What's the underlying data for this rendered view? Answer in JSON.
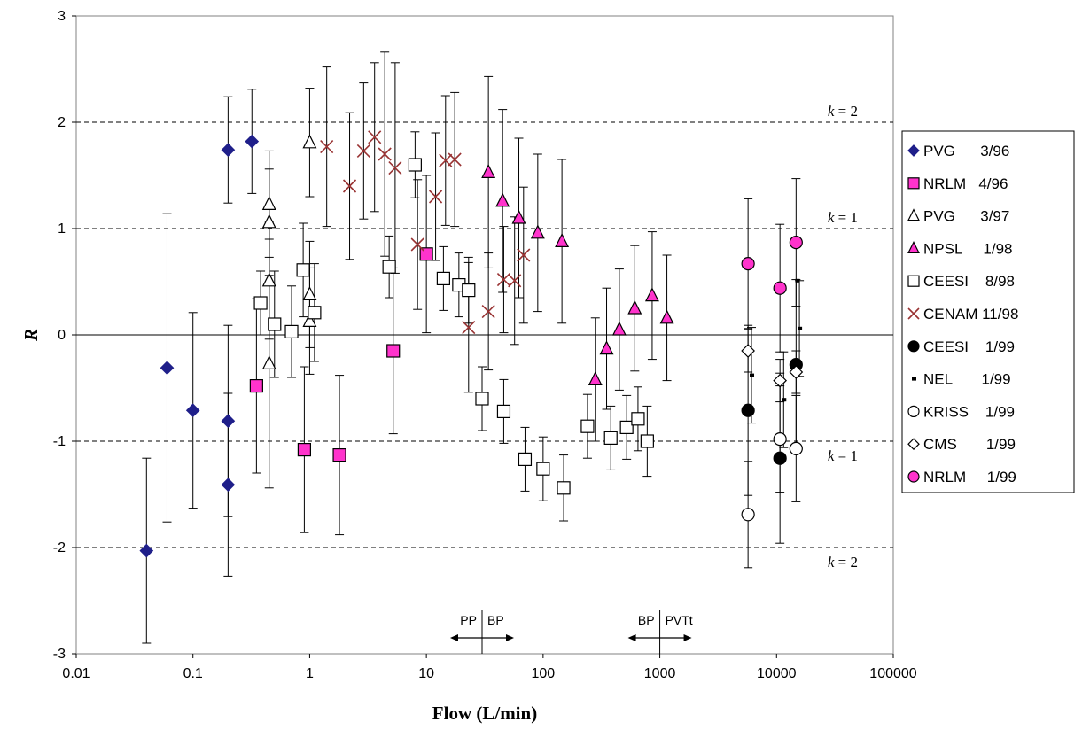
{
  "chart_data": {
    "type": "scatter",
    "title": "",
    "xlabel": "Flow (L/min)",
    "ylabel": "R",
    "xscale": "log",
    "xlim": [
      0.01,
      100000
    ],
    "ylim": [
      -3,
      3
    ],
    "x_tick_labels": [
      "0.01",
      "0.1",
      "1",
      "10",
      "100",
      "1000",
      "10000",
      "100000"
    ],
    "y_tick_labels": [
      "-3",
      "-2",
      "-1",
      "0",
      "1",
      "2",
      "3"
    ],
    "grid": "dashed lines at ±1 and ±2",
    "legend_position": "right",
    "reference_lines": [
      {
        "y": 2,
        "label_prefix": "k",
        "label_suffix": " = 2"
      },
      {
        "y": 1,
        "label_prefix": "k",
        "label_suffix": " = 1"
      },
      {
        "y": -1,
        "label_prefix": "k",
        "label_suffix": " = 1"
      },
      {
        "y": -2,
        "label_prefix": "k",
        "label_suffix": " = 2"
      }
    ],
    "annotations": [
      {
        "x": 30,
        "left": "PP",
        "right": "BP"
      },
      {
        "x": 1000,
        "left": "BP",
        "right": "PVTt"
      }
    ],
    "series": [
      {
        "name": "PVG      3/96",
        "marker": "diamond",
        "fill": "#1f1f8a",
        "stroke": "#1f1f8a",
        "points": [
          [
            0.04,
            -2.03,
            0.87
          ],
          [
            0.06,
            -0.31,
            1.45
          ],
          [
            0.1,
            -0.71,
            0.92
          ],
          [
            0.2,
            1.74,
            0.5
          ],
          [
            0.2,
            -0.81,
            0.9
          ],
          [
            0.2,
            -1.41,
            0.86
          ],
          [
            0.32,
            1.82,
            0.49
          ]
        ]
      },
      {
        "name": "NRLM   4/96",
        "marker": "square",
        "fill": "#ff33cc",
        "stroke": "#000000",
        "points": [
          [
            0.35,
            -0.48,
            0.82
          ],
          [
            0.9,
            -1.08,
            0.78
          ],
          [
            1.8,
            -1.13,
            0.75
          ],
          [
            5.2,
            -0.15,
            0.78
          ],
          [
            10,
            0.76,
            0.74
          ]
        ]
      },
      {
        "name": "PVG      3/97",
        "marker": "triangle",
        "fill": "#ffffff",
        "stroke": "#000000",
        "points": [
          [
            0.45,
            1.23,
            0.5
          ],
          [
            0.45,
            1.06,
            0.5
          ],
          [
            0.45,
            0.51,
            0.55
          ],
          [
            0.45,
            -0.27,
            1.17
          ],
          [
            1.0,
            1.81,
            0.51
          ],
          [
            1.0,
            0.38,
            0.5
          ],
          [
            1.0,
            0.13,
            0.5
          ]
        ]
      },
      {
        "name": "NPSL     1/98",
        "marker": "triangle",
        "fill": "#ff33cc",
        "stroke": "#000000",
        "points": [
          [
            34,
            1.53,
            0.9
          ],
          [
            45,
            1.26,
            0.86
          ],
          [
            62,
            1.1,
            0.75
          ],
          [
            90,
            0.96,
            0.74
          ],
          [
            145,
            0.88,
            0.77
          ],
          [
            280,
            -0.42,
            0.58
          ],
          [
            350,
            -0.13,
            0.57
          ],
          [
            450,
            0.05,
            0.57
          ],
          [
            610,
            0.25,
            0.59
          ],
          [
            860,
            0.37,
            0.6
          ],
          [
            1150,
            0.16,
            0.59
          ]
        ]
      },
      {
        "name": "CEESI    8/98",
        "marker": "square",
        "fill": "#ffffff",
        "stroke": "#000000",
        "points": [
          [
            0.38,
            0.3,
            0.3
          ],
          [
            0.5,
            0.1,
            0.5
          ],
          [
            0.7,
            0.03,
            0.43
          ],
          [
            0.88,
            0.61,
            0.44
          ],
          [
            1.1,
            0.21,
            0.46
          ],
          [
            4.8,
            0.64,
            0.29
          ],
          [
            8,
            1.6,
            0.31
          ],
          [
            14,
            0.53,
            0.3
          ],
          [
            19,
            0.47,
            0.3
          ],
          [
            23,
            0.42,
            0.31
          ],
          [
            30,
            -0.6,
            0.3
          ],
          [
            46,
            -0.72,
            0.3
          ],
          [
            70,
            -1.17,
            0.3
          ],
          [
            100,
            -1.26,
            0.3
          ],
          [
            150,
            -1.44,
            0.31
          ],
          [
            240,
            -0.86,
            0.3
          ],
          [
            380,
            -0.97,
            0.3
          ],
          [
            520,
            -0.87,
            0.3
          ],
          [
            650,
            -0.79,
            0.3
          ],
          [
            780,
            -1.0,
            0.33
          ]
        ]
      },
      {
        "name": "CENAM 11/98",
        "marker": "x",
        "fill": "none",
        "stroke": "#993333",
        "points": [
          [
            1.4,
            1.77,
            0.75
          ],
          [
            2.2,
            1.4,
            0.69
          ],
          [
            2.9,
            1.73,
            0.64
          ],
          [
            3.6,
            1.86,
            0.7
          ],
          [
            4.4,
            1.7,
            0.96
          ],
          [
            5.4,
            1.57,
            0.99
          ],
          [
            8.4,
            0.85,
            0.61
          ],
          [
            12,
            1.3,
            0.6
          ],
          [
            14.6,
            1.64,
            0.61
          ],
          [
            17.5,
            1.65,
            0.63
          ],
          [
            23,
            0.07,
            0.61
          ],
          [
            34,
            0.22,
            0.55
          ],
          [
            46,
            0.52,
            0.5
          ],
          [
            57,
            0.51,
            0.6
          ],
          [
            68,
            0.75,
            0.64
          ]
        ]
      },
      {
        "name": "CEESI    1/99",
        "marker": "circle",
        "fill": "#000000",
        "stroke": "#000000",
        "points": [
          [
            5700,
            -0.71,
            0.8
          ],
          [
            10700,
            -1.16,
            0.8
          ],
          [
            14700,
            -0.28,
            0.8
          ]
        ]
      },
      {
        "name": "NEL       1/99",
        "marker": "dash",
        "fill": "#000000",
        "stroke": "#000000",
        "points": [
          [
            6100,
            -0.38,
            0.45
          ],
          [
            11500,
            -0.61,
            0.45
          ],
          [
            15700,
            0.06,
            0.45
          ],
          [
            15000,
            0.51,
            0
          ]
        ]
      },
      {
        "name": "KRISS    1/99",
        "marker": "circle",
        "fill": "#ffffff",
        "stroke": "#000000",
        "points": [
          [
            5700,
            -1.69,
            0.5
          ],
          [
            10700,
            -0.98,
            0.5
          ],
          [
            14700,
            -1.07,
            0.5
          ]
        ]
      },
      {
        "name": "CMS       1/99",
        "marker": "diamond",
        "fill": "#ffffff",
        "stroke": "#000000",
        "points": [
          [
            5700,
            -0.15,
            0.2
          ],
          [
            10700,
            -0.43,
            0.2
          ],
          [
            14700,
            -0.35,
            0.2
          ]
        ]
      },
      {
        "name": "NRLM     1/99",
        "marker": "circle",
        "fill": "#ff33cc",
        "stroke": "#000000",
        "points": [
          [
            5700,
            0.67,
            0.61
          ],
          [
            10700,
            0.44,
            0.6
          ],
          [
            14700,
            0.87,
            0.6
          ]
        ]
      }
    ]
  }
}
